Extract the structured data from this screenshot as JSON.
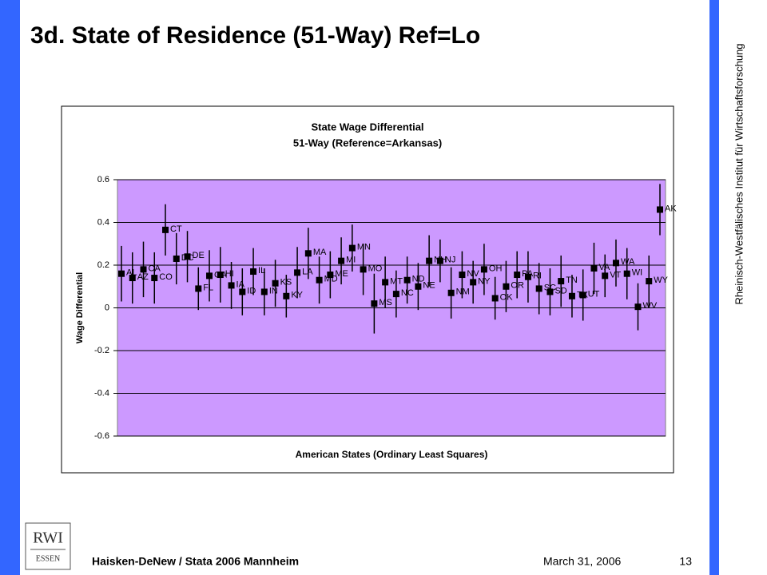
{
  "slide": {
    "title": "3d. State of Residence (51-Way) Ref=Lo",
    "side_text": "Rheinisch-Westfälisches Institut für Wirtschaftsforschung",
    "footer": {
      "author": "Haisken-DeNew / Stata 2006 Mannheim",
      "date": "March 31, 2006",
      "page": "13"
    },
    "logo": {
      "top": "RWI",
      "bottom": "ESSEN"
    }
  },
  "chart_data": {
    "type": "errorbar",
    "title": [
      "State Wage Differential",
      "51-Way (Reference=Arkansas)"
    ],
    "x_label": "American States (Ordinary Least Squares)",
    "y_label": "Wage Differential",
    "categories": [
      "AL",
      "AZ",
      "CA",
      "CO",
      "CT",
      "DC",
      "DE",
      "FL",
      "GA",
      "HI",
      "IA",
      "ID",
      "IL",
      "IN",
      "KS",
      "KY",
      "LA",
      "MA",
      "MD",
      "ME",
      "MI",
      "MN",
      "MO",
      "MS",
      "MT",
      "NC",
      "ND",
      "NE",
      "NH",
      "NJ",
      "NM",
      "NV",
      "NY",
      "OH",
      "OK",
      "OR",
      "PA",
      "RI",
      "SC",
      "SD",
      "TN",
      "TX",
      "UT",
      "VA",
      "VT",
      "WA",
      "WI",
      "WV",
      "WY",
      "AK"
    ],
    "values": [
      0.16,
      0.14,
      0.18,
      0.14,
      0.365,
      0.23,
      0.24,
      0.09,
      0.15,
      0.155,
      0.105,
      0.075,
      0.17,
      0.075,
      0.115,
      0.055,
      0.165,
      0.255,
      0.13,
      0.155,
      0.22,
      0.28,
      0.18,
      0.02,
      0.12,
      0.065,
      0.13,
      0.1,
      0.22,
      0.22,
      0.07,
      0.155,
      0.12,
      0.18,
      0.045,
      0.1,
      0.155,
      0.145,
      0.09,
      0.075,
      0.125,
      0.055,
      0.06,
      0.185,
      0.15,
      0.21,
      0.16,
      0.005,
      0.125,
      0.46
    ],
    "errors": [
      0.13,
      0.12,
      0.13,
      0.12,
      0.12,
      0.12,
      0.12,
      0.1,
      0.12,
      0.13,
      0.11,
      0.11,
      0.11,
      0.11,
      0.11,
      0.1,
      0.12,
      0.12,
      0.11,
      0.11,
      0.11,
      0.11,
      0.12,
      0.14,
      0.12,
      0.11,
      0.11,
      0.11,
      0.12,
      0.1,
      0.12,
      0.11,
      0.1,
      0.12,
      0.1,
      0.12,
      0.11,
      0.12,
      0.12,
      0.11,
      0.12,
      0.1,
      0.12,
      0.12,
      0.1,
      0.11,
      0.12,
      0.11,
      0.12,
      0.12
    ],
    "color": "#000000",
    "plot_background": "#cc99ff",
    "ylim": [
      -0.6,
      0.6
    ],
    "yticks": [
      -0.6,
      -0.4,
      -0.2,
      0,
      0.2,
      0.4,
      0.6
    ],
    "grid": true
  }
}
